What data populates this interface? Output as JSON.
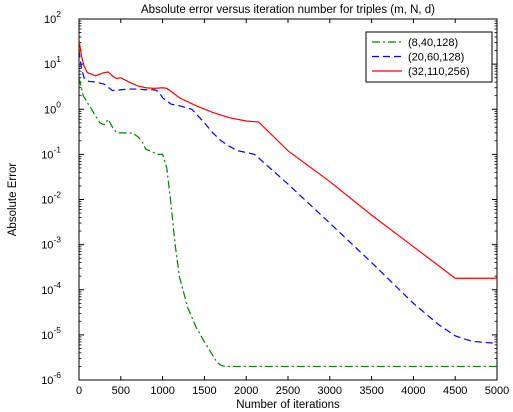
{
  "chart_data": {
    "type": "line",
    "title": "Absolute error versus iteration number for triples (m, N, d)",
    "xlabel": "Number of iterations",
    "ylabel": "Absolute Error",
    "xlim": [
      0,
      5000
    ],
    "ylim_exponent": [
      -6,
      2
    ],
    "yscale": "log",
    "grid": false,
    "legend_position": "top-right",
    "x_ticks": [
      "0",
      "500",
      "1000",
      "1500",
      "2000",
      "2500",
      "3000",
      "3500",
      "4000",
      "4500",
      "5000"
    ],
    "x_tick_values": [
      0,
      500,
      1000,
      1500,
      2000,
      2500,
      3000,
      3500,
      4000,
      4500,
      5000
    ],
    "y_tick_exponents": [
      -6,
      -5,
      -4,
      -3,
      -2,
      -1,
      0,
      1,
      2
    ],
    "y_tick_base": "10",
    "series": [
      {
        "name": "(8,40,128)",
        "color": "#008000",
        "dash": "dashdot",
        "points": [
          [
            0,
            5
          ],
          [
            50,
            2
          ],
          [
            100,
            1.4
          ],
          [
            150,
            1
          ],
          [
            200,
            0.7
          ],
          [
            250,
            0.5
          ],
          [
            300,
            0.45
          ],
          [
            350,
            0.6
          ],
          [
            400,
            0.4
          ],
          [
            450,
            0.3
          ],
          [
            500,
            0.3
          ],
          [
            600,
            0.3
          ],
          [
            650,
            0.29
          ],
          [
            700,
            0.25
          ],
          [
            750,
            0.2
          ],
          [
            800,
            0.13
          ],
          [
            850,
            0.12
          ],
          [
            900,
            0.11
          ],
          [
            950,
            0.1
          ],
          [
            1000,
            0.1
          ],
          [
            1050,
            0.05
          ],
          [
            1100,
            0.008
          ],
          [
            1150,
            0.001
          ],
          [
            1200,
            0.0002
          ],
          [
            1300,
            4e-05
          ],
          [
            1400,
            1.5e-05
          ],
          [
            1500,
            7e-06
          ],
          [
            1600,
            3.5e-06
          ],
          [
            1650,
            2.5e-06
          ],
          [
            1700,
            2.1e-06
          ],
          [
            1750,
            2e-06
          ],
          [
            2000,
            2e-06
          ],
          [
            3000,
            2e-06
          ],
          [
            4000,
            2e-06
          ],
          [
            5000,
            2e-06
          ]
        ]
      },
      {
        "name": "(20,60,128)",
        "color": "#0000ff",
        "dash": "dashed",
        "points": [
          [
            0,
            20
          ],
          [
            30,
            8
          ],
          [
            60,
            5
          ],
          [
            100,
            4.2
          ],
          [
            200,
            4
          ],
          [
            300,
            3.6
          ],
          [
            400,
            2.6
          ],
          [
            500,
            2.7
          ],
          [
            600,
            2.8
          ],
          [
            700,
            2.8
          ],
          [
            800,
            2.7
          ],
          [
            900,
            2.7
          ],
          [
            950,
            2.5
          ],
          [
            1000,
            1.8
          ],
          [
            1100,
            1.3
          ],
          [
            1200,
            1.2
          ],
          [
            1350,
            1
          ],
          [
            1500,
            0.5
          ],
          [
            1600,
            0.3
          ],
          [
            1700,
            0.2
          ],
          [
            1800,
            0.15
          ],
          [
            1900,
            0.12
          ],
          [
            2000,
            0.11
          ],
          [
            2100,
            0.1
          ],
          [
            2500,
            0.022
          ],
          [
            3000,
            0.003
          ],
          [
            3500,
            0.0004
          ],
          [
            4000,
            5e-05
          ],
          [
            4300,
            1.7e-05
          ],
          [
            4500,
            9.5e-06
          ],
          [
            4700,
            7.2e-06
          ],
          [
            5000,
            6.5e-06
          ]
        ]
      },
      {
        "name": "(32,110,256)",
        "color": "#ff0000",
        "dash": "solid",
        "points": [
          [
            0,
            35
          ],
          [
            30,
            15
          ],
          [
            60,
            9
          ],
          [
            100,
            6.5
          ],
          [
            200,
            5.5
          ],
          [
            300,
            6.5
          ],
          [
            350,
            6.7
          ],
          [
            400,
            5.5
          ],
          [
            450,
            4.8
          ],
          [
            500,
            5
          ],
          [
            600,
            4
          ],
          [
            700,
            3.3
          ],
          [
            800,
            3
          ],
          [
            900,
            2.9
          ],
          [
            1000,
            3
          ],
          [
            1050,
            2.9
          ],
          [
            1100,
            2.5
          ],
          [
            1200,
            1.8
          ],
          [
            1400,
            1.2
          ],
          [
            1600,
            0.85
          ],
          [
            1800,
            0.65
          ],
          [
            2000,
            0.55
          ],
          [
            2100,
            0.53
          ],
          [
            2150,
            0.52
          ],
          [
            2500,
            0.12
          ],
          [
            3000,
            0.025
          ],
          [
            3500,
            0.0045
          ],
          [
            4000,
            0.0009
          ],
          [
            4500,
            0.00018
          ],
          [
            5000,
            0.00018
          ]
        ]
      }
    ]
  }
}
